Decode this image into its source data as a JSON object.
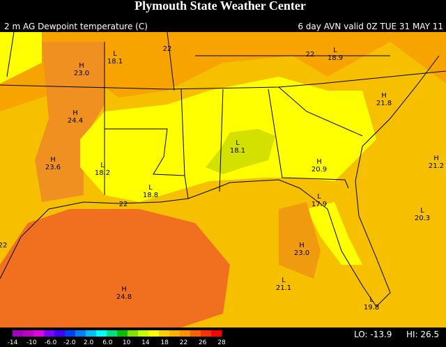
{
  "header": {
    "title": "Plymouth State Weather Center",
    "left": "2 m AG Dewpoint temperature (C)",
    "right": "6 day AVN valid 0Z TUE 31 MAY 11"
  },
  "map": {
    "extremes": [
      {
        "kind": "L",
        "value": "18.1"
      },
      {
        "kind": "H",
        "value": "23.0"
      },
      {
        "kind": "L",
        "value": "18.9"
      },
      {
        "kind": "H",
        "value": "21.8"
      },
      {
        "kind": "H",
        "value": "24.4"
      },
      {
        "kind": "H",
        "value": "23.6"
      },
      {
        "kind": "L",
        "value": "18.2"
      },
      {
        "kind": "L",
        "value": "18.1"
      },
      {
        "kind": "H",
        "value": "20.9"
      },
      {
        "kind": "H",
        "value": "21.2"
      },
      {
        "kind": "L",
        "value": "18.8"
      },
      {
        "kind": "L",
        "value": "17.9"
      },
      {
        "kind": "L",
        "value": "20.3"
      },
      {
        "kind": "H",
        "value": "23.0"
      },
      {
        "kind": "L",
        "value": "21.1"
      },
      {
        "kind": "H",
        "value": "24.8"
      },
      {
        "kind": "L",
        "value": "19.8"
      }
    ],
    "contour_labels": [
      "22",
      "22",
      "22",
      "22"
    ]
  },
  "colorbar": {
    "labels": [
      "-14",
      "-10",
      "-6.0",
      "-2.0",
      "2.0",
      "6.0",
      "10",
      "14",
      "18",
      "22",
      "26",
      "28"
    ]
  },
  "footer": {
    "lo": "LO: -13.9",
    "hi": "HI: 26.5"
  }
}
